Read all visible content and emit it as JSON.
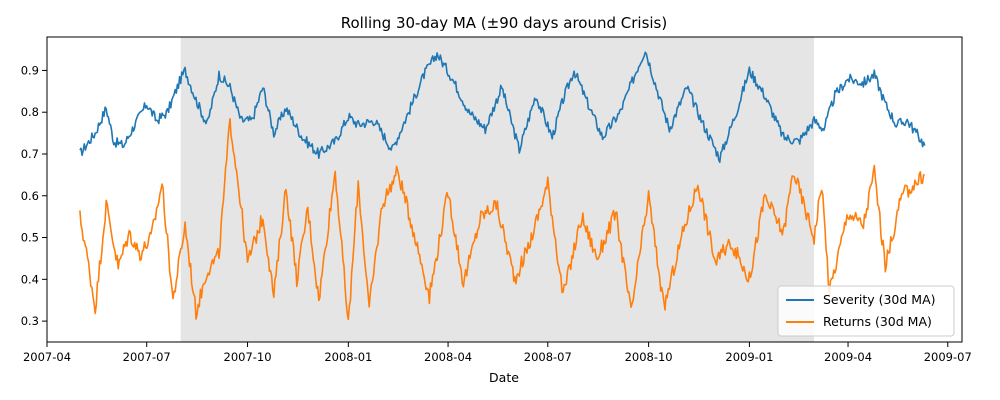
{
  "chart_data": {
    "type": "line",
    "title": "Rolling 30-day MA (±90 days around Crisis)",
    "xlabel": "Date",
    "ylabel": "",
    "x_ticks": [
      "2007-04",
      "2007-07",
      "2007-10",
      "2008-01",
      "2008-04",
      "2008-07",
      "2008-10",
      "2009-01",
      "2009-04",
      "2009-07"
    ],
    "y_ticks": [
      0.3,
      0.4,
      0.5,
      0.6,
      0.7,
      0.8,
      0.9
    ],
    "xlim": [
      "2007-04-01",
      "2009-07-14"
    ],
    "ylim": [
      0.25,
      0.98
    ],
    "shaded_region": {
      "start": "2007-08-01",
      "end": "2009-03-01",
      "color": "#e5e5e5"
    },
    "grid": false,
    "legend_position": "lower-right",
    "series": [
      {
        "name": "Severity (30d MA)",
        "color": "#1f77b4",
        "points": [
          [
            "2007-05-01",
            0.7
          ],
          [
            "2007-05-15",
            0.75
          ],
          [
            "2007-05-25",
            0.81
          ],
          [
            "2007-06-01",
            0.73
          ],
          [
            "2007-06-10",
            0.72
          ],
          [
            "2007-06-20",
            0.77
          ],
          [
            "2007-07-01",
            0.82
          ],
          [
            "2007-07-10",
            0.78
          ],
          [
            "2007-07-20",
            0.8
          ],
          [
            "2007-08-01",
            0.88
          ],
          [
            "2007-08-05",
            0.9
          ],
          [
            "2007-08-15",
            0.83
          ],
          [
            "2007-08-25",
            0.77
          ],
          [
            "2007-09-05",
            0.89
          ],
          [
            "2007-09-15",
            0.86
          ],
          [
            "2007-09-25",
            0.78
          ],
          [
            "2007-10-05",
            0.78
          ],
          [
            "2007-10-15",
            0.86
          ],
          [
            "2007-10-25",
            0.75
          ],
          [
            "2007-11-05",
            0.81
          ],
          [
            "2007-11-20",
            0.74
          ],
          [
            "2007-12-05",
            0.7
          ],
          [
            "2007-12-20",
            0.73
          ],
          [
            "2008-01-01",
            0.79
          ],
          [
            "2008-01-10",
            0.77
          ],
          [
            "2008-01-25",
            0.78
          ],
          [
            "2008-02-10",
            0.71
          ],
          [
            "2008-02-25",
            0.8
          ],
          [
            "2008-03-10",
            0.89
          ],
          [
            "2008-03-22",
            0.94
          ],
          [
            "2008-04-05",
            0.88
          ],
          [
            "2008-04-20",
            0.8
          ],
          [
            "2008-05-05",
            0.76
          ],
          [
            "2008-05-20",
            0.86
          ],
          [
            "2008-06-05",
            0.71
          ],
          [
            "2008-06-20",
            0.84
          ],
          [
            "2008-07-05",
            0.74
          ],
          [
            "2008-07-15",
            0.83
          ],
          [
            "2008-07-25",
            0.9
          ],
          [
            "2008-08-05",
            0.83
          ],
          [
            "2008-08-20",
            0.74
          ],
          [
            "2008-09-05",
            0.8
          ],
          [
            "2008-09-20",
            0.9
          ],
          [
            "2008-09-28",
            0.95
          ],
          [
            "2008-10-08",
            0.86
          ],
          [
            "2008-10-20",
            0.76
          ],
          [
            "2008-11-05",
            0.86
          ],
          [
            "2008-11-20",
            0.77
          ],
          [
            "2008-12-05",
            0.69
          ],
          [
            "2008-12-20",
            0.8
          ],
          [
            "2009-01-01",
            0.9
          ],
          [
            "2009-01-15",
            0.84
          ],
          [
            "2009-02-01",
            0.74
          ],
          [
            "2009-02-15",
            0.73
          ],
          [
            "2009-03-01",
            0.78
          ],
          [
            "2009-03-10",
            0.76
          ],
          [
            "2009-03-20",
            0.84
          ],
          [
            "2009-04-01",
            0.88
          ],
          [
            "2009-04-15",
            0.87
          ],
          [
            "2009-04-25",
            0.89
          ],
          [
            "2009-05-05",
            0.82
          ],
          [
            "2009-05-15",
            0.77
          ],
          [
            "2009-05-25",
            0.78
          ],
          [
            "2009-06-05",
            0.74
          ],
          [
            "2009-06-10",
            0.72
          ]
        ]
      },
      {
        "name": "Returns (30d MA)",
        "color": "#ff7f0e",
        "points": [
          [
            "2007-05-01",
            0.55
          ],
          [
            "2007-05-08",
            0.45
          ],
          [
            "2007-05-15",
            0.33
          ],
          [
            "2007-05-25",
            0.58
          ],
          [
            "2007-06-05",
            0.43
          ],
          [
            "2007-06-15",
            0.51
          ],
          [
            "2007-06-25",
            0.46
          ],
          [
            "2007-07-05",
            0.5
          ],
          [
            "2007-07-15",
            0.63
          ],
          [
            "2007-07-25",
            0.35
          ],
          [
            "2007-08-05",
            0.53
          ],
          [
            "2007-08-15",
            0.32
          ],
          [
            "2007-08-25",
            0.42
          ],
          [
            "2007-09-05",
            0.46
          ],
          [
            "2007-09-15",
            0.78
          ],
          [
            "2007-09-22",
            0.64
          ],
          [
            "2007-10-01",
            0.44
          ],
          [
            "2007-10-15",
            0.55
          ],
          [
            "2007-10-25",
            0.36
          ],
          [
            "2007-11-05",
            0.62
          ],
          [
            "2007-11-15",
            0.4
          ],
          [
            "2007-11-25",
            0.57
          ],
          [
            "2007-12-05",
            0.35
          ],
          [
            "2007-12-20",
            0.66
          ],
          [
            "2008-01-01",
            0.29
          ],
          [
            "2008-01-10",
            0.63
          ],
          [
            "2008-01-20",
            0.33
          ],
          [
            "2008-02-01",
            0.58
          ],
          [
            "2008-02-15",
            0.66
          ],
          [
            "2008-03-01",
            0.51
          ],
          [
            "2008-03-15",
            0.36
          ],
          [
            "2008-04-01",
            0.61
          ],
          [
            "2008-04-15",
            0.39
          ],
          [
            "2008-05-01",
            0.55
          ],
          [
            "2008-05-15",
            0.58
          ],
          [
            "2008-06-01",
            0.4
          ],
          [
            "2008-06-15",
            0.49
          ],
          [
            "2008-07-01",
            0.63
          ],
          [
            "2008-07-15",
            0.36
          ],
          [
            "2008-08-01",
            0.55
          ],
          [
            "2008-08-15",
            0.45
          ],
          [
            "2008-09-01",
            0.56
          ],
          [
            "2008-09-15",
            0.32
          ],
          [
            "2008-10-01",
            0.6
          ],
          [
            "2008-10-15",
            0.33
          ],
          [
            "2008-11-01",
            0.51
          ],
          [
            "2008-11-15",
            0.63
          ],
          [
            "2008-12-01",
            0.44
          ],
          [
            "2008-12-15",
            0.49
          ],
          [
            "2009-01-01",
            0.4
          ],
          [
            "2009-01-15",
            0.6
          ],
          [
            "2009-02-01",
            0.51
          ],
          [
            "2009-02-10",
            0.66
          ],
          [
            "2009-03-01",
            0.5
          ],
          [
            "2009-03-08",
            0.63
          ],
          [
            "2009-03-15",
            0.37
          ],
          [
            "2009-04-01",
            0.56
          ],
          [
            "2009-04-15",
            0.53
          ],
          [
            "2009-04-25",
            0.66
          ],
          [
            "2009-05-05",
            0.43
          ],
          [
            "2009-05-20",
            0.6
          ],
          [
            "2009-06-10",
            0.65
          ]
        ]
      }
    ]
  }
}
